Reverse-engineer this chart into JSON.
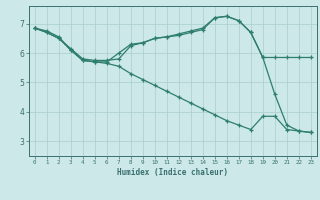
{
  "title": "",
  "xlabel": "Humidex (Indice chaleur)",
  "ylabel": "",
  "bg_color": "#cce8e8",
  "line_color": "#2e7d6e",
  "grid_color": "#aacece",
  "axis_color": "#3a7070",
  "tick_color": "#3a7070",
  "xlim": [
    -0.5,
    23.5
  ],
  "ylim": [
    2.5,
    7.6
  ],
  "xticks": [
    0,
    1,
    2,
    3,
    4,
    5,
    6,
    7,
    8,
    9,
    10,
    11,
    12,
    13,
    14,
    15,
    16,
    17,
    18,
    19,
    20,
    21,
    22,
    23
  ],
  "yticks": [
    3,
    4,
    5,
    6,
    7
  ],
  "lines": [
    {
      "x": [
        0,
        1,
        2,
        3,
        4,
        5,
        6,
        7,
        8,
        9,
        10,
        11,
        12,
        13,
        14,
        15,
        16,
        17,
        18,
        19,
        20,
        21,
        22,
        23
      ],
      "y": [
        6.85,
        6.75,
        6.55,
        6.1,
        5.75,
        5.7,
        5.7,
        6.0,
        6.3,
        6.35,
        6.5,
        6.55,
        6.65,
        6.75,
        6.85,
        7.2,
        7.25,
        7.1,
        6.7,
        5.85,
        5.85,
        5.85,
        5.85,
        5.85
      ]
    },
    {
      "x": [
        0,
        1,
        2,
        3,
        4,
        5,
        6,
        7,
        8,
        9,
        10,
        11,
        12,
        13,
        14,
        15,
        16,
        17,
        18,
        19,
        20,
        21,
        22,
        23
      ],
      "y": [
        6.85,
        6.7,
        6.5,
        6.15,
        5.8,
        5.75,
        5.75,
        5.8,
        6.25,
        6.35,
        6.5,
        6.55,
        6.6,
        6.7,
        6.8,
        7.2,
        7.25,
        7.1,
        6.7,
        5.85,
        4.6,
        3.55,
        3.35,
        3.3
      ]
    },
    {
      "x": [
        0,
        1,
        2,
        3,
        4,
        5,
        6,
        7,
        8,
        9,
        10,
        11,
        12,
        13,
        14,
        15,
        16,
        17,
        18,
        19,
        20,
        21,
        22,
        23
      ],
      "y": [
        6.85,
        6.7,
        6.5,
        6.1,
        5.75,
        5.7,
        5.65,
        5.55,
        5.3,
        5.1,
        4.9,
        4.7,
        4.5,
        4.3,
        4.1,
        3.9,
        3.7,
        3.55,
        3.4,
        3.85,
        3.85,
        3.4,
        3.35,
        3.3
      ]
    }
  ]
}
